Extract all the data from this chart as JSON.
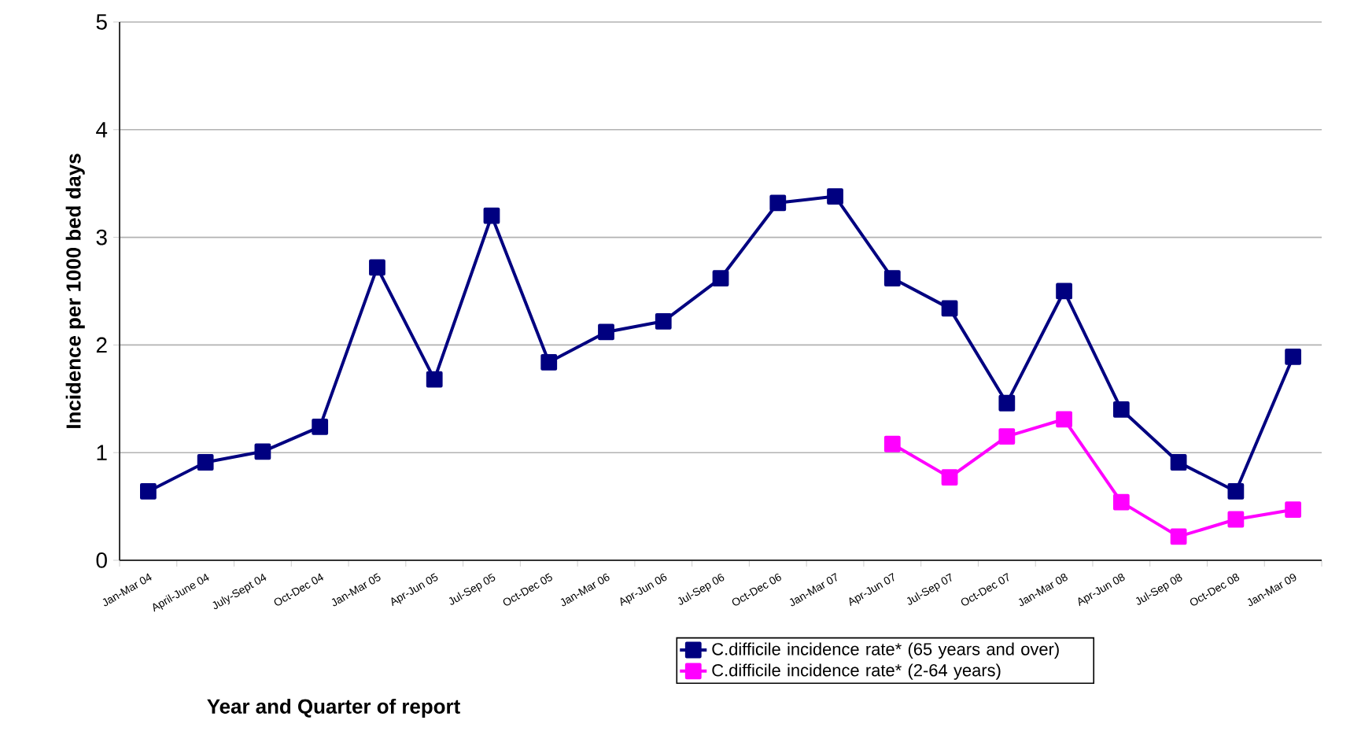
{
  "chart_data": {
    "type": "line",
    "xlabel": "Year and Quarter of report",
    "ylabel": "Incidence per 1000 bed days",
    "categories": [
      "Jan-Mar 04",
      "April-June 04",
      "July-Sept 04",
      "Oct-Dec 04",
      "Jan-Mar 05",
      "Apr-Jun 05",
      "Jul-Sep 05",
      "Oct-Dec 05",
      "Jan-Mar 06",
      "Apr-Jun 06",
      "Jul-Sep 06",
      "Oct-Dec 06",
      "Jan-Mar 07",
      "Apr-Jun 07",
      "Jul-Sep 07",
      "Oct-Dec 07",
      "Jan-Mar 08",
      "Apr-Jun 08",
      "Jul-Sep 08",
      "Oct-Dec 08",
      "Jan-Mar 09"
    ],
    "series": [
      {
        "name": "C.difficile incidence rate* (65 years and over)",
        "color": "#000080",
        "values": [
          0.64,
          0.91,
          1.01,
          1.24,
          2.72,
          1.68,
          3.2,
          1.84,
          2.12,
          2.22,
          2.62,
          3.32,
          3.38,
          2.62,
          2.34,
          1.46,
          2.5,
          1.4,
          0.91,
          0.64,
          1.89
        ]
      },
      {
        "name": "C.difficile incidence rate* (2-64 years)",
        "color": "#ff00ff",
        "values": [
          null,
          null,
          null,
          null,
          null,
          null,
          null,
          null,
          null,
          null,
          null,
          null,
          null,
          1.08,
          0.77,
          1.15,
          1.31,
          0.54,
          0.22,
          0.38,
          0.47
        ]
      }
    ],
    "ylim": [
      0,
      5
    ],
    "yticks": [
      0,
      1,
      2,
      3,
      4,
      5
    ],
    "grid": "y",
    "legend": "bottom right",
    "marker": "square",
    "line_style": "solid"
  }
}
